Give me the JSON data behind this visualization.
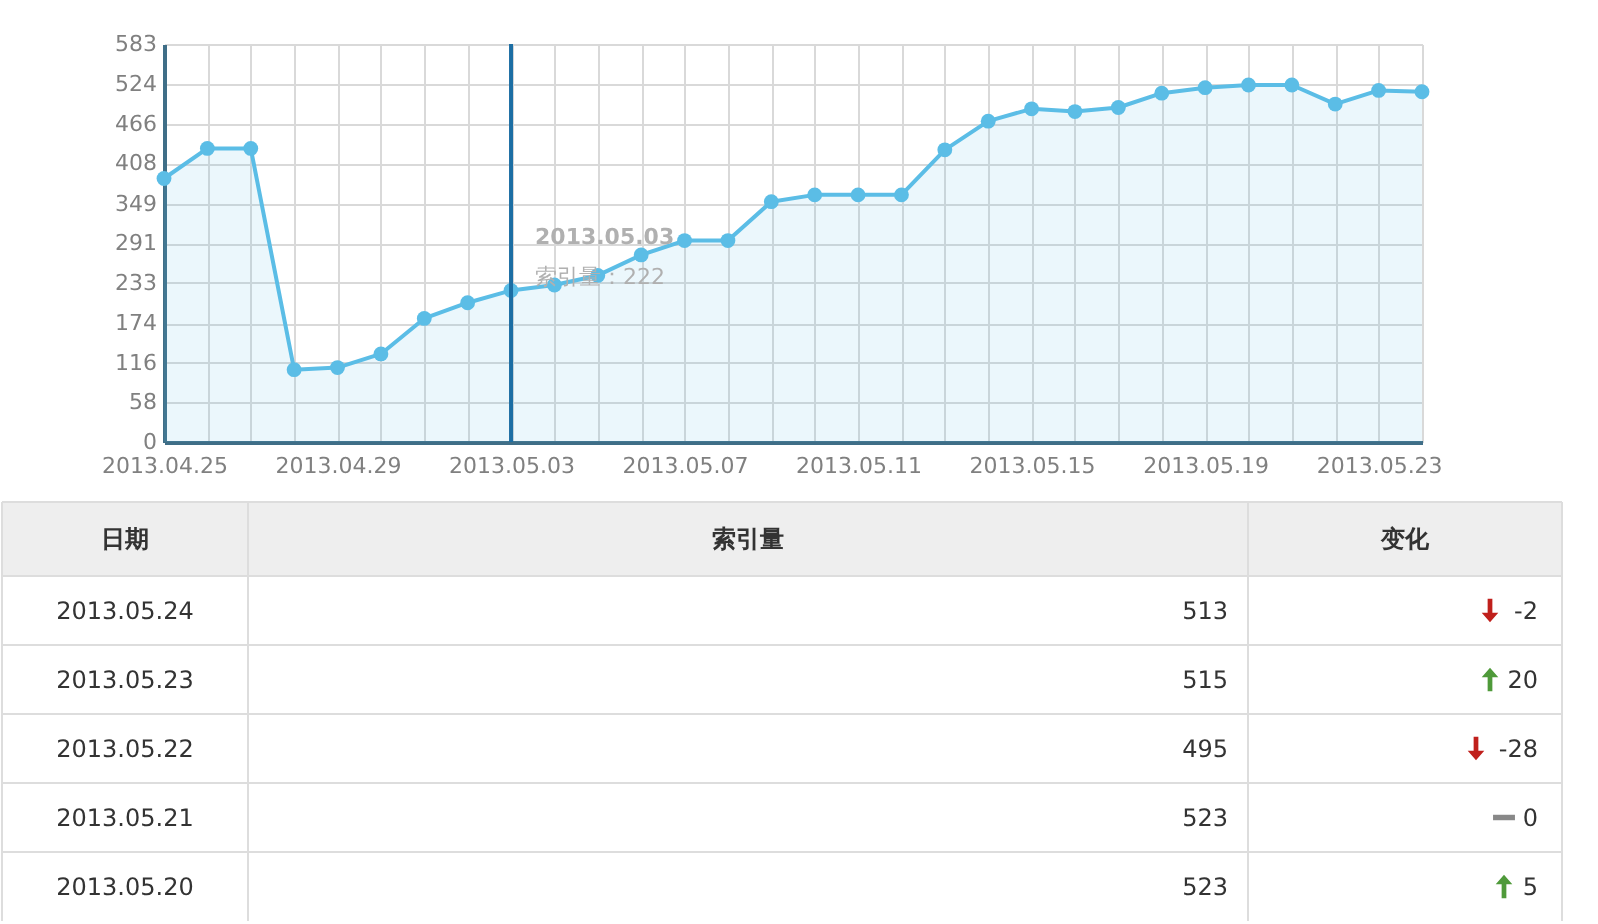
{
  "chart_data": [
    {
      "type": "area",
      "color": "#5bbde6",
      "x": [
        "2013-04-25",
        "2013-04-26",
        "2013-04-27",
        "2013-04-28",
        "2013-04-29",
        "2013-04-30",
        "2013-05-01",
        "2013-05-02",
        "2013-05-03",
        "2013-05-04",
        "2013-05-05",
        "2013-05-06",
        "2013-05-07",
        "2013-05-08",
        "2013-05-09",
        "2013-05-10",
        "2013-05-11",
        "2013-05-12",
        "2013-05-13",
        "2013-05-14",
        "2013-05-15",
        "2013-05-16",
        "2013-05-17",
        "2013-05-18",
        "2013-05-19",
        "2013-05-20",
        "2013-05-21",
        "2013-05-22",
        "2013-05-23",
        "2013-05-24"
      ],
      "values": [
        386,
        430,
        430,
        106,
        109,
        129,
        181,
        204,
        222,
        230,
        244,
        274,
        295,
        295,
        352,
        362,
        362,
        362,
        428,
        470,
        488,
        484,
        490,
        511,
        519,
        523,
        523,
        495,
        515,
        513
      ],
      "xlim": [
        "2013-04-25",
        "2013-05-24"
      ],
      "xticks": [
        {
          "value": "2013-04-25",
          "label": "2013.04.25"
        },
        {
          "value": "2013-04-26",
          "label": null
        },
        {
          "value": "2013-04-27",
          "label": null
        },
        {
          "value": "2013-04-28",
          "label": null
        },
        {
          "value": "2013-04-29",
          "label": "2013.04.29"
        },
        {
          "value": "2013-04-30",
          "label": null
        },
        {
          "value": "2013-05-01",
          "label": null
        },
        {
          "value": "2013-05-02",
          "label": null
        },
        {
          "value": "2013-05-03",
          "label": "2013.05.03"
        },
        {
          "value": "2013-05-04",
          "label": null
        },
        {
          "value": "2013-05-05",
          "label": null
        },
        {
          "value": "2013-05-06",
          "label": null
        },
        {
          "value": "2013-05-07",
          "label": "2013.05.07"
        },
        {
          "value": "2013-05-08",
          "label": null
        },
        {
          "value": "2013-05-09",
          "label": null
        },
        {
          "value": "2013-05-10",
          "label": null
        },
        {
          "value": "2013-05-11",
          "label": "2013.05.11"
        },
        {
          "value": "2013-05-12",
          "label": null
        },
        {
          "value": "2013-05-13",
          "label": null
        },
        {
          "value": "2013-05-14",
          "label": null
        },
        {
          "value": "2013-05-15",
          "label": "2013.05.15"
        },
        {
          "value": "2013-05-16",
          "label": null
        },
        {
          "value": "2013-05-17",
          "label": null
        },
        {
          "value": "2013-05-18",
          "label": null
        },
        {
          "value": "2013-05-19",
          "label": "2013.05.19"
        },
        {
          "value": "2013-05-20",
          "label": null
        },
        {
          "value": "2013-05-21",
          "label": null
        },
        {
          "value": "2013-05-22",
          "label": null
        },
        {
          "value": "2013-05-23",
          "label": "2013.05.23"
        },
        {
          "value": "2013-05-24",
          "label": null
        }
      ],
      "ylim": [
        0,
        583
      ],
      "yticks": [
        0,
        58,
        116,
        174,
        233,
        291,
        349,
        408,
        466,
        524,
        583
      ],
      "grid": true,
      "marker": "circle",
      "line_style": "solid",
      "ref_lines": [
        {
          "axis": "x",
          "value": "2013-05-03",
          "color": "#1c6ea4"
        }
      ],
      "annotations": [
        {
          "text": "2013.05.03",
          "x": "2013-05-03",
          "y": 222
        },
        {
          "text": "索引量：222",
          "x": "2013-05-03",
          "y": 222
        }
      ]
    },
    {
      "type": "other",
      "categories": [
        "日期",
        "索引量",
        "变化"
      ],
      "y_categories": [
        "2013.05.24",
        "2013.05.23",
        "2013.05.22",
        "2013.05.21",
        "2013.05.20"
      ],
      "cell_labels": [
        [
          "513",
          "-2"
        ],
        [
          "515",
          "20"
        ],
        [
          "495",
          "-28"
        ],
        [
          "523",
          "0"
        ],
        [
          "523",
          "5"
        ]
      ]
    }
  ]
}
